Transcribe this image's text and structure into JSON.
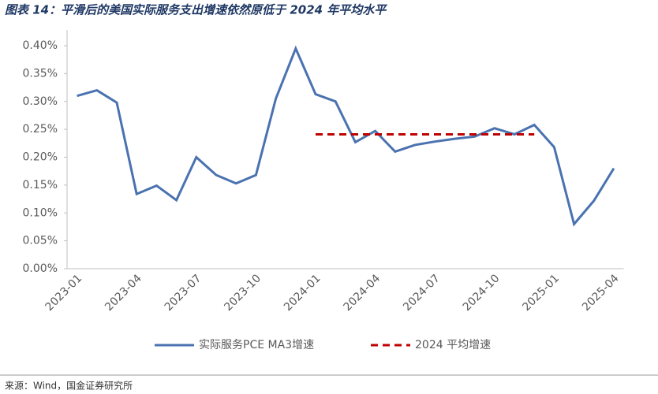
{
  "chart_data": {
    "type": "line",
    "title": "图表 14：平滑后的美国实际服务支出增速依然原低于 2024 年平均水平",
    "source": "来源：Wind，国金证券研究所",
    "categories": [
      "2023-01",
      null,
      null,
      "2023-04",
      null,
      null,
      "2023-07",
      null,
      null,
      "2023-10",
      null,
      null,
      "2024-01",
      null,
      null,
      "2024-04",
      null,
      null,
      "2024-07",
      null,
      null,
      "2024-10",
      null,
      null,
      "2025-01",
      null,
      null,
      "2025-04"
    ],
    "series": [
      {
        "name": "实际服务PCE MA3增速",
        "color": "#4a72b0",
        "dash": false,
        "values": [
          0.31,
          0.32,
          0.298,
          0.134,
          0.149,
          0.123,
          0.2,
          0.168,
          0.153,
          0.168,
          0.305,
          0.395,
          0.313,
          0.3,
          0.227,
          0.247,
          0.21,
          0.222,
          0.228,
          0.233,
          0.237,
          0.252,
          0.241,
          0.258,
          0.218,
          0.08,
          0.122,
          0.18
        ]
      },
      {
        "name": "2024 平均增速",
        "color": "#c00000",
        "dash": true,
        "values": [
          null,
          null,
          null,
          null,
          null,
          null,
          null,
          null,
          null,
          null,
          null,
          null,
          0.241,
          0.241,
          0.241,
          0.241,
          0.241,
          0.241,
          0.241,
          0.241,
          0.241,
          0.241,
          0.241,
          0.241,
          null,
          null,
          null,
          null
        ]
      }
    ],
    "ylim": [
      0,
      0.4
    ],
    "yticks": [
      {
        "value": 0,
        "label": "0.00%"
      },
      {
        "value": 0.05,
        "label": "0.05%"
      },
      {
        "value": 0.1,
        "label": "0.10%"
      },
      {
        "value": 0.15,
        "label": "0.15%"
      },
      {
        "value": 0.2,
        "label": "0.20%"
      },
      {
        "value": 0.25,
        "label": "0.25%"
      },
      {
        "value": 0.3,
        "label": "0.30%"
      },
      {
        "value": 0.35,
        "label": "0.35%"
      },
      {
        "value": 0.4,
        "label": "0.40%"
      }
    ],
    "legend": "bottom"
  }
}
